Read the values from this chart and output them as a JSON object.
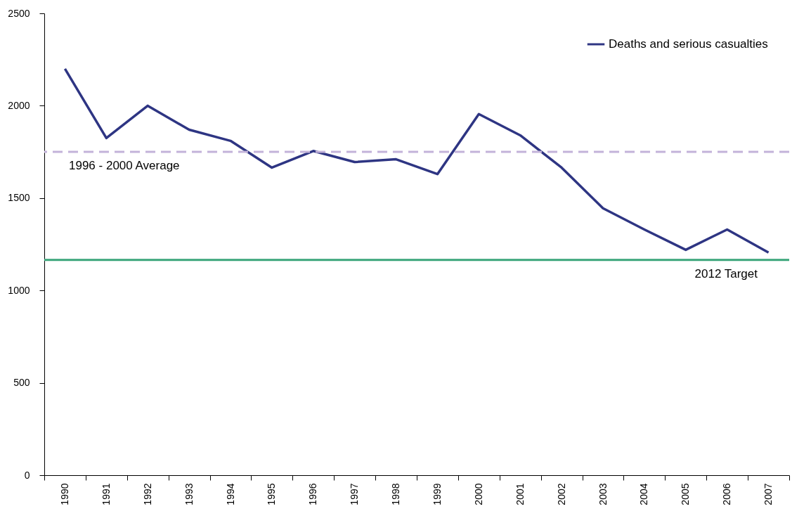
{
  "chart_data": {
    "type": "line",
    "categories": [
      "1990",
      "1991",
      "1992",
      "1993",
      "1994",
      "1995",
      "1996",
      "1997",
      "1998",
      "1999",
      "2000",
      "2001",
      "2002",
      "2003",
      "2004",
      "2005",
      "2006",
      "2007"
    ],
    "series": [
      {
        "name": "Deaths and serious casualties",
        "color": "#2e3583",
        "values": [
          2200,
          1825,
          2000,
          1870,
          1810,
          1665,
          1755,
          1695,
          1710,
          1630,
          1955,
          1840,
          1665,
          1445,
          1330,
          1220,
          1330,
          1205
        ]
      }
    ],
    "ylim": [
      0,
      2500
    ],
    "yticks": [
      0,
      500,
      1000,
      1500,
      2000,
      2500
    ],
    "ref_lines": [
      {
        "axis": "y",
        "value": 1750,
        "label": "1996 - 2000 Average",
        "color": "#c3b3d9",
        "line_style": "dashed"
      },
      {
        "axis": "y",
        "value": 1165,
        "label": "2012 Target",
        "color": "#3aa57a",
        "line_style": "solid"
      }
    ],
    "grid": false,
    "legend": "top right",
    "marker": "none",
    "line_style": "solid"
  }
}
